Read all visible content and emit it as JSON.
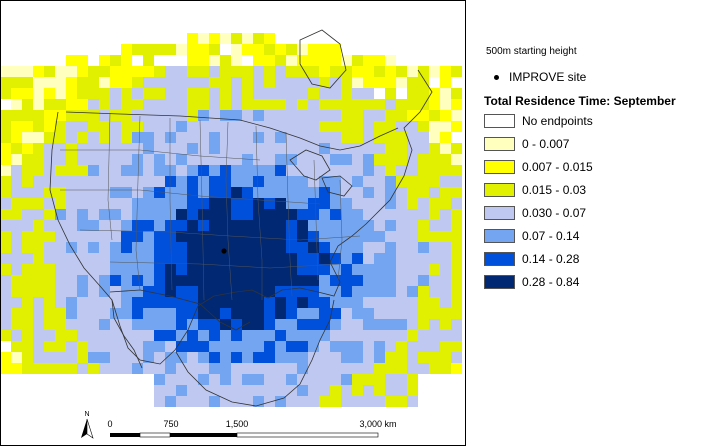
{
  "legend": {
    "height_note": "500m starting height",
    "site_label": "IMPROVE site",
    "title": "Total Residence Time: September",
    "classes": [
      {
        "label": "No endpoints",
        "color": "#ffffff"
      },
      {
        "label": "0 - 0.007",
        "color": "#ffffbe"
      },
      {
        "label": "0.007 - 0.015",
        "color": "#ffff00"
      },
      {
        "label": "0.015 - 0.03",
        "color": "#e1ef00"
      },
      {
        "label": "0.030 - 0.07",
        "color": "#bec8f0"
      },
      {
        "label": "0.07 - 0.14",
        "color": "#73a5f0"
      },
      {
        "label": "0.14 - 0.28",
        "color": "#0050dc"
      },
      {
        "label": "0.28 - 0.84",
        "color": "#002873"
      }
    ]
  },
  "scale_bar": {
    "ticks": [
      "0",
      "750",
      "1,500",
      "3,000 km"
    ],
    "north_label": "N"
  }
}
